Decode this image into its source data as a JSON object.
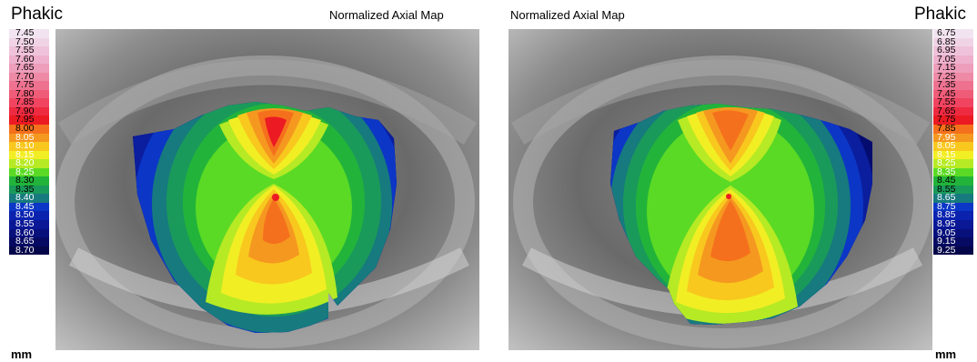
{
  "header": {
    "left_status": "Phakic",
    "right_status": "Phakic",
    "left_title": "Normalized Axial Map",
    "right_title": "Normalized Axial Map"
  },
  "left_scale": {
    "unit": "mm",
    "entries": [
      {
        "label": "7.45",
        "color": "#f1e4f0",
        "text": "#000000"
      },
      {
        "label": "7.50",
        "color": "#f0d4e6",
        "text": "#000000"
      },
      {
        "label": "7.55",
        "color": "#efc2da",
        "text": "#000000"
      },
      {
        "label": "7.60",
        "color": "#eeb0cc",
        "text": "#000000"
      },
      {
        "label": "7.65",
        "color": "#ee9eba",
        "text": "#000000"
      },
      {
        "label": "7.70",
        "color": "#ee8aa6",
        "text": "#000000"
      },
      {
        "label": "7.75",
        "color": "#ee7290",
        "text": "#000000"
      },
      {
        "label": "7.80",
        "color": "#ef5c78",
        "text": "#000000"
      },
      {
        "label": "7.85",
        "color": "#f04460",
        "text": "#000000"
      },
      {
        "label": "7.90",
        "color": "#ee2a40",
        "text": "#000000"
      },
      {
        "label": "7.95",
        "color": "#ec1a22",
        "text": "#000000"
      },
      {
        "label": "8.00",
        "color": "#f5701c",
        "text": "#000000"
      },
      {
        "label": "8.05",
        "color": "#f59820",
        "text": "#ffffff"
      },
      {
        "label": "8.10",
        "color": "#f8c81e",
        "text": "#ffffff"
      },
      {
        "label": "8.15",
        "color": "#f2ee24",
        "text": "#ffffff"
      },
      {
        "label": "8.20",
        "color": "#b6ea24",
        "text": "#ffffff"
      },
      {
        "label": "8.25",
        "color": "#5ada24",
        "text": "#ffffff"
      },
      {
        "label": "8.30",
        "color": "#22b43a",
        "text": "#000000"
      },
      {
        "label": "8.35",
        "color": "#1a9a5a",
        "text": "#000000"
      },
      {
        "label": "8.40",
        "color": "#167a7e",
        "text": "#ffffff"
      },
      {
        "label": "8.45",
        "color": "#0c36c6",
        "text": "#ffffff"
      },
      {
        "label": "8.50",
        "color": "#0a22ae",
        "text": "#ffffff"
      },
      {
        "label": "8.55",
        "color": "#0a1896",
        "text": "#ffffff"
      },
      {
        "label": "8.60",
        "color": "#08107c",
        "text": "#ffffff"
      },
      {
        "label": "8.65",
        "color": "#060a62",
        "text": "#ffffff"
      },
      {
        "label": "8.70",
        "color": "#04064a",
        "text": "#ffffff"
      }
    ]
  },
  "right_scale": {
    "unit": "mm",
    "entries": [
      {
        "label": "6.75",
        "color": "#f1e4f0",
        "text": "#000000"
      },
      {
        "label": "6.85",
        "color": "#f0d4e6",
        "text": "#000000"
      },
      {
        "label": "6.95",
        "color": "#efc2da",
        "text": "#000000"
      },
      {
        "label": "7.05",
        "color": "#eeb0cc",
        "text": "#000000"
      },
      {
        "label": "7.15",
        "color": "#ee9eba",
        "text": "#000000"
      },
      {
        "label": "7.25",
        "color": "#ee8aa6",
        "text": "#000000"
      },
      {
        "label": "7.35",
        "color": "#ee7290",
        "text": "#000000"
      },
      {
        "label": "7.45",
        "color": "#ef5c78",
        "text": "#000000"
      },
      {
        "label": "7.55",
        "color": "#f04460",
        "text": "#000000"
      },
      {
        "label": "7.65",
        "color": "#ee2a40",
        "text": "#000000"
      },
      {
        "label": "7.75",
        "color": "#ec1a22",
        "text": "#000000"
      },
      {
        "label": "7.85",
        "color": "#f5701c",
        "text": "#000000"
      },
      {
        "label": "7.95",
        "color": "#f59820",
        "text": "#ffffff"
      },
      {
        "label": "8.05",
        "color": "#f8c81e",
        "text": "#ffffff"
      },
      {
        "label": "8.15",
        "color": "#f2ee24",
        "text": "#ffffff"
      },
      {
        "label": "8.25",
        "color": "#b6ea24",
        "text": "#ffffff"
      },
      {
        "label": "8.35",
        "color": "#5ada24",
        "text": "#ffffff"
      },
      {
        "label": "8.45",
        "color": "#22b43a",
        "text": "#000000"
      },
      {
        "label": "8.55",
        "color": "#1a9a5a",
        "text": "#000000"
      },
      {
        "label": "8.65",
        "color": "#167a7e",
        "text": "#ffffff"
      },
      {
        "label": "8.75",
        "color": "#0c36c6",
        "text": "#ffffff"
      },
      {
        "label": "8.85",
        "color": "#0a22ae",
        "text": "#ffffff"
      },
      {
        "label": "8.95",
        "color": "#0a1896",
        "text": "#ffffff"
      },
      {
        "label": "9.05",
        "color": "#08107c",
        "text": "#ffffff"
      },
      {
        "label": "9.15",
        "color": "#060a62",
        "text": "#ffffff"
      },
      {
        "label": "9.25",
        "color": "#04064a",
        "text": "#ffffff"
      }
    ]
  }
}
